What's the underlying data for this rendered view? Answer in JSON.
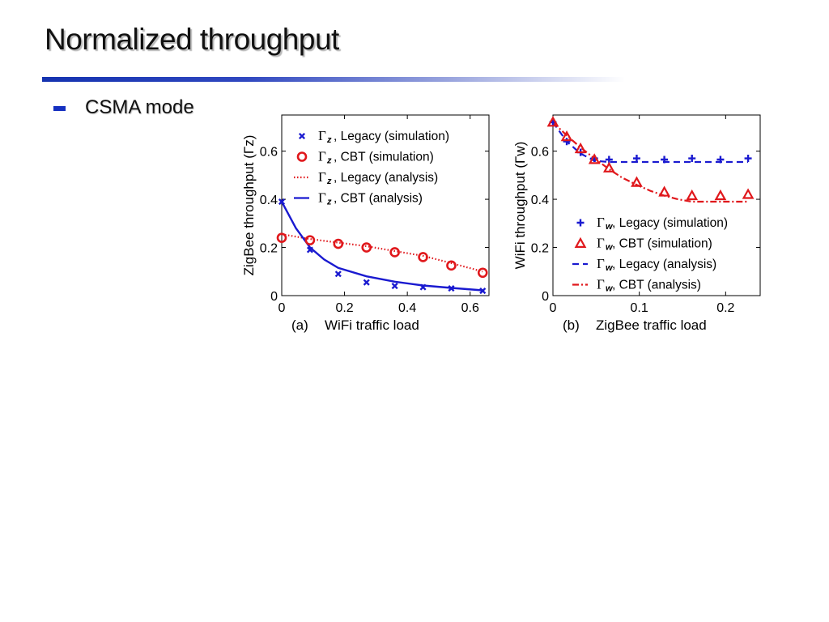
{
  "slide": {
    "title": "Normalized throughput",
    "bullet": "CSMA mode"
  },
  "colors": {
    "title_rule": "#1533b0",
    "bullet": "#1530c0",
    "blue": "#1a1ad0",
    "red": "#e0181c"
  },
  "chart_data": [
    {
      "type": "line",
      "panel_label": "(a)",
      "xlabel": "WiFi traffic load",
      "ylabel": "ZigBee throughput (Γz)",
      "xlim": [
        0,
        0.66
      ],
      "ylim": [
        0,
        0.75
      ],
      "xticks": [
        "0",
        "0.2",
        "0.4",
        "0.6"
      ],
      "xtick_values": [
        0,
        0.2,
        0.4,
        0.6
      ],
      "yticks": [
        "0",
        "0.2",
        "0.4",
        "0.6"
      ],
      "ytick_values": [
        0,
        0.2,
        0.4,
        0.6
      ],
      "grid": false,
      "legend_position": "top-right",
      "series": [
        {
          "name": "Γz, Legacy (simulation)",
          "legend_symbol": "Γ",
          "legend_sub": "z",
          "legend_text": ", Legacy (simulation)",
          "style": "marker",
          "marker": "x",
          "color": "#1a1ad0",
          "x": [
            0,
            0.09,
            0.18,
            0.27,
            0.36,
            0.45,
            0.54,
            0.64
          ],
          "y": [
            0.39,
            0.19,
            0.09,
            0.055,
            0.04,
            0.035,
            0.03,
            0.02
          ]
        },
        {
          "name": "Γz, CBT (simulation)",
          "legend_symbol": "Γ",
          "legend_sub": "z",
          "legend_text": ", CBT (simulation)",
          "style": "marker",
          "marker": "circle",
          "color": "#e0181c",
          "x": [
            0,
            0.09,
            0.18,
            0.27,
            0.36,
            0.45,
            0.54,
            0.64
          ],
          "y": [
            0.24,
            0.23,
            0.215,
            0.2,
            0.18,
            0.16,
            0.125,
            0.095
          ]
        },
        {
          "name": "Γz, Legacy (analysis)",
          "legend_symbol": "Γ",
          "legend_sub": "z",
          "legend_text": ", Legacy (analysis)",
          "style": "dotted",
          "color": "#e0181c",
          "x": [
            0,
            0.09,
            0.18,
            0.27,
            0.36,
            0.45,
            0.54,
            0.64
          ],
          "y": [
            0.255,
            0.235,
            0.22,
            0.205,
            0.185,
            0.165,
            0.135,
            0.1
          ]
        },
        {
          "name": "Γz, CBT (analysis)",
          "legend_symbol": "Γ",
          "legend_sub": "z",
          "legend_text": ", CBT (analysis)",
          "style": "solid",
          "color": "#1a1ad0",
          "x": [
            0,
            0.045,
            0.09,
            0.135,
            0.18,
            0.27,
            0.36,
            0.45,
            0.54,
            0.64
          ],
          "y": [
            0.39,
            0.28,
            0.2,
            0.15,
            0.115,
            0.08,
            0.058,
            0.042,
            0.032,
            0.022
          ]
        }
      ]
    },
    {
      "type": "line",
      "panel_label": "(b)",
      "xlabel": "ZigBee traffic load",
      "ylabel": "WiFi throughput (Γw)",
      "xlim": [
        0,
        0.24
      ],
      "ylim": [
        0,
        0.75
      ],
      "xticks": [
        "0",
        "0.1",
        "0.2"
      ],
      "xtick_values": [
        0,
        0.1,
        0.2
      ],
      "yticks": [
        "0",
        "0.2",
        "0.4",
        "0.6"
      ],
      "ytick_values": [
        0,
        0.2,
        0.4,
        0.6
      ],
      "grid": false,
      "legend_position": "bottom-right",
      "series": [
        {
          "name": "Γw, Legacy (simulation)",
          "legend_symbol": "Γ",
          "legend_sub": "w",
          "legend_text": ", Legacy (simulation)",
          "style": "marker",
          "marker": "plus",
          "color": "#1a1ad0",
          "x": [
            0,
            0.016,
            0.032,
            0.048,
            0.065,
            0.097,
            0.129,
            0.161,
            0.194,
            0.226
          ],
          "y": [
            0.72,
            0.64,
            0.595,
            0.57,
            0.565,
            0.57,
            0.565,
            0.57,
            0.565,
            0.57
          ]
        },
        {
          "name": "Γw, CBT (simulation)",
          "legend_symbol": "Γ",
          "legend_sub": "w",
          "legend_text": ", CBT (simulation)",
          "style": "marker",
          "marker": "triangle",
          "color": "#e0181c",
          "x": [
            0,
            0.016,
            0.032,
            0.048,
            0.065,
            0.097,
            0.129,
            0.161,
            0.194,
            0.226
          ],
          "y": [
            0.72,
            0.66,
            0.61,
            0.565,
            0.53,
            0.47,
            0.43,
            0.415,
            0.415,
            0.42
          ]
        },
        {
          "name": "Γw, Legacy (analysis)",
          "legend_symbol": "Γ",
          "legend_sub": "w",
          "legend_text": ", Legacy (analysis)",
          "style": "dashed",
          "color": "#1a1ad0",
          "x": [
            0,
            0.016,
            0.032,
            0.048,
            0.065,
            0.1,
            0.15,
            0.2,
            0.226
          ],
          "y": [
            0.72,
            0.64,
            0.59,
            0.56,
            0.555,
            0.555,
            0.555,
            0.555,
            0.555
          ]
        },
        {
          "name": "Γw, CBT (analysis)",
          "legend_symbol": "Γ",
          "legend_sub": "w",
          "legend_text": ", CBT (analysis)",
          "style": "dashdot",
          "color": "#e0181c",
          "x": [
            0,
            0.016,
            0.032,
            0.048,
            0.065,
            0.08,
            0.097,
            0.113,
            0.129,
            0.145,
            0.161,
            0.194,
            0.226
          ],
          "y": [
            0.72,
            0.665,
            0.615,
            0.57,
            0.525,
            0.49,
            0.46,
            0.435,
            0.415,
            0.4,
            0.39,
            0.39,
            0.39
          ]
        }
      ]
    }
  ]
}
